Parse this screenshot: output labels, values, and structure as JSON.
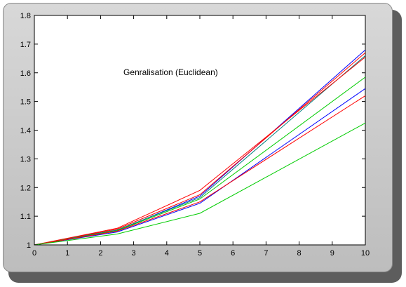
{
  "chart_data": {
    "type": "line",
    "title": "Genralisation (Euclidean)",
    "xlabel": "",
    "ylabel": "",
    "xlim": [
      0,
      10
    ],
    "ylim": [
      1,
      1.8
    ],
    "xticks": [
      0,
      1,
      2,
      3,
      4,
      5,
      6,
      7,
      8,
      9,
      10
    ],
    "yticks": [
      1,
      1.1,
      1.2,
      1.3,
      1.4,
      1.5,
      1.6,
      1.7,
      1.8
    ],
    "grid": false,
    "legend": "none",
    "x": [
      0,
      2.5,
      5,
      10
    ],
    "series": [
      {
        "color": "#0000ff",
        "values": [
          1,
          1.05,
          1.17,
          1.68
        ]
      },
      {
        "color": "#ff0000",
        "values": [
          1,
          1.055,
          1.175,
          1.67
        ]
      },
      {
        "color": "#008080",
        "values": [
          1,
          1.052,
          1.165,
          1.66
        ]
      },
      {
        "color": "#ff0000",
        "values": [
          1,
          1.058,
          1.19,
          1.655
        ]
      },
      {
        "color": "#00cc00",
        "values": [
          1,
          1.05,
          1.16,
          1.585
        ]
      },
      {
        "color": "#0000ff",
        "values": [
          1,
          1.045,
          1.145,
          1.545
        ]
      },
      {
        "color": "#ff0000",
        "values": [
          1,
          1.048,
          1.15,
          1.52
        ]
      },
      {
        "color": "#00cc00",
        "values": [
          1,
          1.038,
          1.11,
          1.425
        ]
      }
    ]
  }
}
